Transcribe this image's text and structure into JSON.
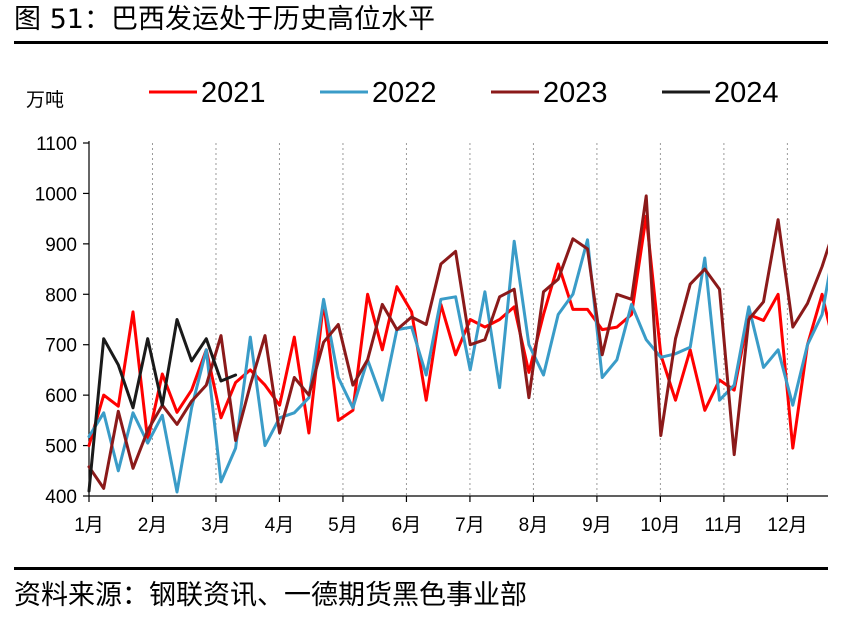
{
  "figure": {
    "title": "图 51：巴西发运处于历史高位水平",
    "source": "资料来源：钢联资讯、一德期货黑色事业部"
  },
  "chart_data": {
    "type": "line",
    "title": "巴西发运处于历史高位水平",
    "unit_label": "万吨",
    "xlabel": "",
    "ylabel": "万吨",
    "ylim": [
      400,
      1100
    ],
    "yticks": [
      400,
      500,
      600,
      700,
      800,
      900,
      1000,
      1100
    ],
    "xlim": [
      1,
      12.75
    ],
    "month_ticks": [
      "1月",
      "2月",
      "3月",
      "4月",
      "5月",
      "6月",
      "7月",
      "8月",
      "9月",
      "10月",
      "11月",
      "12月"
    ],
    "grid": "vertical dashed at month boundaries",
    "legend_position": "top",
    "series": [
      {
        "name": "2021",
        "color": "#ff0000",
        "width": 3,
        "values": [
          500,
          600,
          578,
          765,
          510,
          642,
          566,
          610,
          690,
          555,
          625,
          650,
          620,
          580,
          715,
          525,
          785,
          550,
          570,
          800,
          690,
          815,
          765,
          590,
          780,
          680,
          750,
          735,
          750,
          775,
          645,
          760,
          860,
          770,
          770,
          730,
          735,
          760,
          955,
          680,
          590,
          690,
          570,
          630,
          610,
          760,
          748,
          800,
          495,
          700,
          800,
          675
        ]
      },
      {
        "name": "2022",
        "color": "#3a9cc8",
        "width": 3,
        "values": [
          518,
          565,
          450,
          565,
          505,
          560,
          408,
          575,
          690,
          428,
          495,
          715,
          500,
          555,
          565,
          595,
          790,
          635,
          575,
          670,
          590,
          730,
          735,
          640,
          790,
          795,
          650,
          805,
          615,
          905,
          700,
          640,
          760,
          800,
          908,
          635,
          670,
          780,
          710,
          675,
          682,
          695,
          872,
          590,
          620,
          775,
          655,
          690,
          580,
          700,
          760,
          925
        ]
      },
      {
        "name": "2023",
        "color": "#8b1a1a",
        "width": 3,
        "values": [
          458,
          415,
          568,
          455,
          530,
          580,
          542,
          588,
          620,
          718,
          510,
          620,
          718,
          525,
          635,
          600,
          705,
          740,
          620,
          670,
          780,
          730,
          755,
          740,
          860,
          885,
          700,
          710,
          795,
          810,
          595,
          805,
          830,
          910,
          890,
          680,
          800,
          790,
          995,
          520,
          712,
          820,
          850,
          810,
          482,
          750,
          785,
          948,
          735,
          782,
          855,
          945
        ]
      },
      {
        "name": "2024",
        "color": "#1a1a1a",
        "width": 3,
        "values": [
          410,
          712,
          660,
          575,
          712,
          580,
          750,
          668,
          712,
          628,
          640
        ]
      }
    ]
  }
}
